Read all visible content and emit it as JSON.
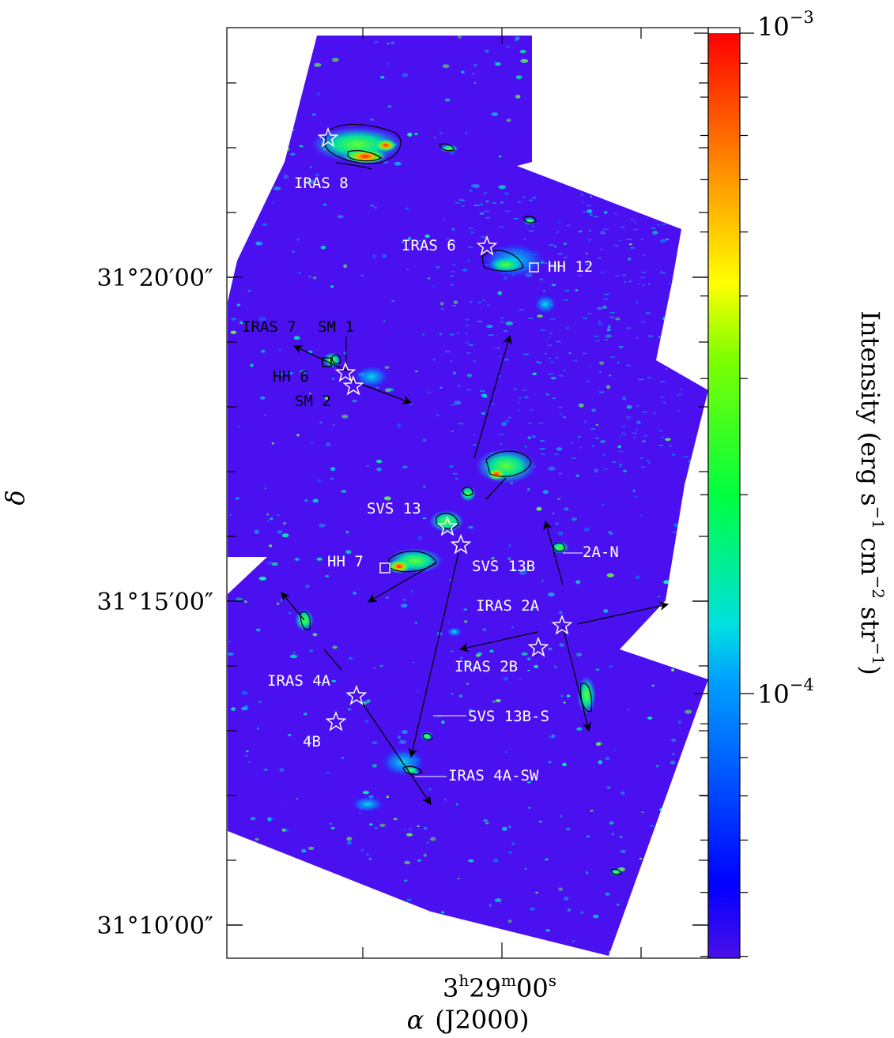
{
  "chart_data": {
    "type": "heatmap",
    "axes": {
      "xlabel_alpha": "α",
      "xlabel_epoch": "(J2000)",
      "ylabel": "δ",
      "x_center_tick": {
        "h": "3",
        "m": "29",
        "s": "00"
      },
      "y_ticks": [
        "31°20′00″",
        "31°15′00″",
        "31°10′00″"
      ]
    },
    "colorbar": {
      "label": "Intensity (erg s⁻¹ cm⁻² str⁻¹)",
      "label_parts": {
        "main": "Intensity (erg s",
        "e1": "−1",
        "cm": " cm",
        "e2": "−2",
        "str": " str",
        "e3": "−1",
        "close": ")"
      },
      "ticks": [
        {
          "base": "10",
          "exp": "−3"
        },
        {
          "base": "10",
          "exp": "−4"
        }
      ],
      "scale": "log",
      "range": [
        2e-05,
        0.001
      ],
      "colors": [
        "#4b0fe8",
        "#0000ff",
        "#00d0ff",
        "#00ff40",
        "#ffff00",
        "#ff9000",
        "#ff0000"
      ]
    },
    "sources_stars": [
      {
        "name": "IRAS 8"
      },
      {
        "name": "IRAS 6"
      },
      {
        "name": "IRAS 7"
      },
      {
        "name": "SM 2"
      },
      {
        "name": "SVS 13"
      },
      {
        "name": "SVS 13B"
      },
      {
        "name": "IRAS 2A"
      },
      {
        "name": "IRAS 2B"
      },
      {
        "name": "IRAS 4A"
      },
      {
        "name": "4B"
      }
    ],
    "labels": {
      "iras8": "IRAS 8",
      "iras6": "IRAS 6",
      "hh12": "HH 12",
      "iras7": "IRAS 7",
      "sm1": "SM 1",
      "hh6": "HH 6",
      "sm2": "SM 2",
      "svs13": "SVS 13",
      "hh7": "HH 7",
      "svs13b": "SVS 13B",
      "n2a": "2A-N",
      "iras2a": "IRAS 2A",
      "iras2b": "IRAS 2B",
      "iras4a": "IRAS 4A",
      "svs13bs": "SVS 13B-S",
      "b4": "4B",
      "iras4asw": "IRAS 4A-SW"
    }
  }
}
